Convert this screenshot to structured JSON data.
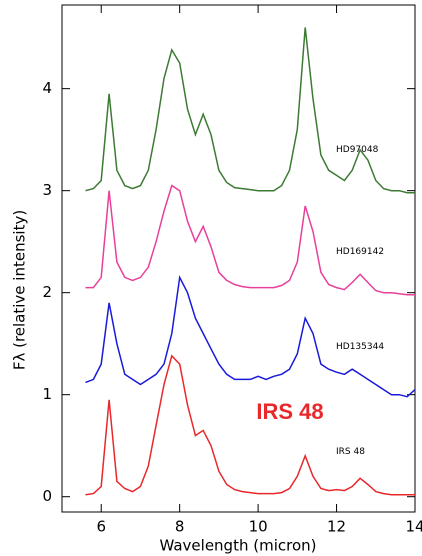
{
  "chart_data": {
    "type": "line",
    "xlabel": "Wavelength (micron)",
    "ylabel": "Fλ (relative intensity)",
    "x": [
      5.6,
      5.8,
      6.0,
      6.2,
      6.4,
      6.6,
      6.8,
      7.0,
      7.2,
      7.4,
      7.6,
      7.8,
      8.0,
      8.2,
      8.4,
      8.6,
      8.8,
      9.0,
      9.2,
      9.4,
      9.6,
      9.8,
      10.0,
      10.2,
      10.4,
      10.6,
      10.8,
      11.0,
      11.2,
      11.4,
      11.6,
      11.8,
      12.0,
      12.2,
      12.4,
      12.6,
      12.8,
      13.0,
      13.2,
      13.4,
      13.6,
      13.8,
      14.0
    ],
    "series": [
      {
        "name": "IRS 48",
        "color": "#e8282b",
        "values": [
          0.02,
          0.03,
          0.1,
          0.95,
          0.15,
          0.08,
          0.05,
          0.1,
          0.3,
          0.7,
          1.1,
          1.38,
          1.3,
          0.9,
          0.6,
          0.65,
          0.5,
          0.25,
          0.12,
          0.07,
          0.05,
          0.04,
          0.03,
          0.03,
          0.03,
          0.04,
          0.08,
          0.2,
          0.4,
          0.2,
          0.08,
          0.06,
          0.07,
          0.06,
          0.1,
          0.18,
          0.12,
          0.05,
          0.03,
          0.02,
          0.02,
          0.02,
          0.02
        ]
      },
      {
        "name": "HD135344",
        "color": "#1a1adb",
        "values": [
          1.12,
          1.15,
          1.3,
          1.9,
          1.5,
          1.2,
          1.15,
          1.1,
          1.15,
          1.2,
          1.3,
          1.6,
          2.15,
          2.0,
          1.75,
          1.6,
          1.45,
          1.3,
          1.2,
          1.15,
          1.15,
          1.15,
          1.18,
          1.15,
          1.18,
          1.2,
          1.25,
          1.4,
          1.75,
          1.6,
          1.3,
          1.25,
          1.22,
          1.2,
          1.25,
          1.2,
          1.15,
          1.1,
          1.05,
          1.0,
          1.0,
          0.98,
          1.05
        ]
      },
      {
        "name": "HD169142",
        "color": "#e8409a",
        "values": [
          2.05,
          2.05,
          2.15,
          3.0,
          2.3,
          2.15,
          2.12,
          2.15,
          2.25,
          2.5,
          2.8,
          3.05,
          3.0,
          2.7,
          2.5,
          2.65,
          2.45,
          2.2,
          2.12,
          2.08,
          2.06,
          2.05,
          2.05,
          2.05,
          2.05,
          2.07,
          2.12,
          2.3,
          2.85,
          2.6,
          2.2,
          2.08,
          2.05,
          2.03,
          2.1,
          2.18,
          2.1,
          2.02,
          2.0,
          2.0,
          1.99,
          1.98,
          1.98
        ]
      },
      {
        "name": "HD97048",
        "color": "#3d7a34",
        "values": [
          3.0,
          3.02,
          3.1,
          3.95,
          3.2,
          3.05,
          3.02,
          3.05,
          3.2,
          3.6,
          4.1,
          4.38,
          4.25,
          3.8,
          3.55,
          3.75,
          3.55,
          3.2,
          3.08,
          3.03,
          3.02,
          3.01,
          3.0,
          3.0,
          3.0,
          3.05,
          3.2,
          3.6,
          4.6,
          3.9,
          3.35,
          3.2,
          3.15,
          3.1,
          3.2,
          3.4,
          3.3,
          3.1,
          3.02,
          3.0,
          3.0,
          2.98,
          2.98
        ]
      }
    ],
    "annotation": "IRS 48",
    "xlim": [
      5,
      14
    ],
    "ylim": [
      -0.15,
      4.82
    ],
    "xticks": [
      6,
      8,
      10,
      12,
      14
    ],
    "yticks": [
      0,
      1,
      2,
      3,
      4
    ],
    "grid": false
  }
}
